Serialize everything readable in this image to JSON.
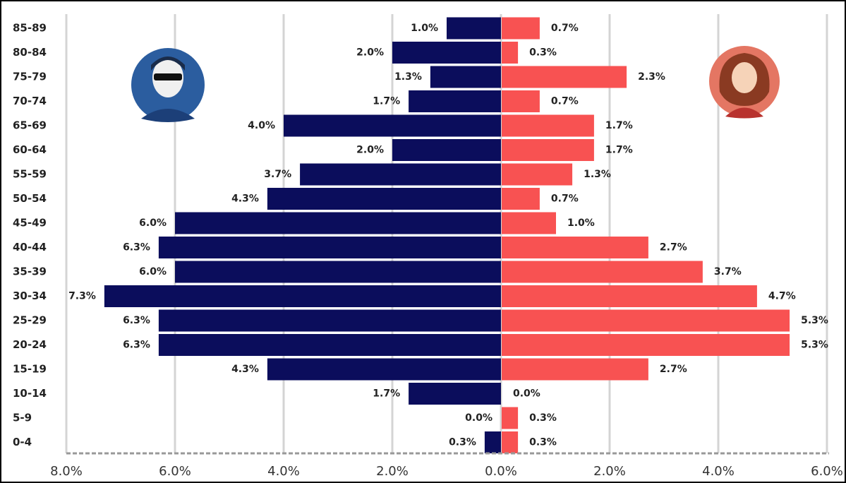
{
  "chart_data": {
    "type": "pyramid",
    "categories": [
      "85-89",
      "80-84",
      "75-79",
      "70-74",
      "65-69",
      "60-64",
      "55-59",
      "50-54",
      "45-49",
      "40-44",
      "35-39",
      "30-34",
      "25-29",
      "20-24",
      "15-19",
      "10-14",
      "5-9",
      "0-4"
    ],
    "series": [
      {
        "side": "left",
        "color": "#0b0d5c",
        "values": [
          1.0,
          2.0,
          1.3,
          1.7,
          4.0,
          2.0,
          3.7,
          4.3,
          6.0,
          6.3,
          6.0,
          7.3,
          6.3,
          6.3,
          4.3,
          1.7,
          0.0,
          0.3
        ],
        "value_labels": [
          "1.0%",
          "2.0%",
          "1.3%",
          "1.7%",
          "4.0%",
          "2.0%",
          "3.7%",
          "4.3%",
          "6.0%",
          "6.3%",
          "6.0%",
          "7.3%",
          "6.3%",
          "6.3%",
          "4.3%",
          "1.7%",
          "0.0%",
          "0.3%"
        ]
      },
      {
        "side": "right",
        "color": "#f85252",
        "values": [
          0.7,
          0.3,
          2.3,
          0.7,
          1.7,
          1.7,
          1.3,
          0.7,
          1.0,
          2.7,
          3.7,
          4.7,
          5.3,
          5.3,
          2.7,
          0.0,
          0.3,
          0.3
        ],
        "value_labels": [
          "0.7%",
          "0.3%",
          "2.3%",
          "0.7%",
          "1.7%",
          "1.7%",
          "1.3%",
          "0.7%",
          "1.0%",
          "2.7%",
          "3.7%",
          "4.7%",
          "5.3%",
          "5.3%",
          "2.7%",
          "0.0%",
          "0.3%",
          "0.3%"
        ]
      }
    ],
    "xlim": [
      -8,
      6
    ],
    "xticks": [
      {
        "value": -8,
        "label": "8.0%"
      },
      {
        "value": -6,
        "label": "6.0%"
      },
      {
        "value": -4,
        "label": "4.0%"
      },
      {
        "value": -2,
        "label": "2.0%"
      },
      {
        "value": 0,
        "label": "0.0%"
      },
      {
        "value": 2,
        "label": "2.0%"
      },
      {
        "value": 4,
        "label": "4.0%"
      },
      {
        "value": 6,
        "label": "6.0%"
      }
    ],
    "grid": true
  }
}
